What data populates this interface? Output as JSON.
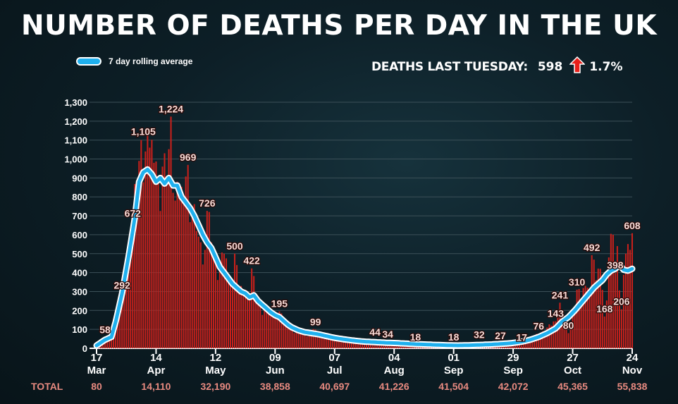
{
  "title": "NUMBER OF DEATHS PER DAY IN THE UK",
  "legend": {
    "label": "7 day rolling average",
    "color": "#1fb0ee"
  },
  "stat": {
    "label": "DEATHS LAST TUESDAY:",
    "value": "598",
    "change": "1.7%",
    "arrow_color": "#e8201a"
  },
  "colors": {
    "bar": "#c8201b",
    "line": "#1fb0ee",
    "grid": "#3c5058",
    "axis_text": "#ffffff",
    "total_text": "#e88a80"
  },
  "chart_data": {
    "type": "bar",
    "title": "NUMBER OF DEATHS PER DAY IN THE UK",
    "xlabel": "",
    "ylabel": "",
    "ylim": [
      0,
      1300
    ],
    "y_ticks": [
      0,
      100,
      200,
      300,
      400,
      500,
      600,
      700,
      800,
      900,
      1000,
      1100,
      1200,
      1300
    ],
    "y_tick_labels": [
      "0",
      "100",
      "200",
      "300",
      "400",
      "500",
      "600",
      "700",
      "800",
      "900",
      "1,000",
      "1,100",
      "1,200",
      "1,300"
    ],
    "day_count": 253,
    "x_ticks": [
      {
        "day": 0,
        "day_label": "17",
        "month": "Mar"
      },
      {
        "day": 28,
        "day_label": "14",
        "month": "Apr"
      },
      {
        "day": 56,
        "day_label": "12",
        "month": "May"
      },
      {
        "day": 84,
        "day_label": "09",
        "month": "Jun"
      },
      {
        "day": 112,
        "day_label": "07",
        "month": "Jul"
      },
      {
        "day": 140,
        "day_label": "04",
        "month": "Aug"
      },
      {
        "day": 168,
        "day_label": "01",
        "month": "Sep"
      },
      {
        "day": 196,
        "day_label": "29",
        "month": "Sep"
      },
      {
        "day": 224,
        "day_label": "27",
        "month": "Oct"
      },
      {
        "day": 252,
        "day_label": "24",
        "month": "Nov"
      }
    ],
    "annotations": [
      {
        "day": 4,
        "value": 58,
        "label": "58"
      },
      {
        "day": 12,
        "value": 292,
        "label": "292"
      },
      {
        "day": 17,
        "value": 672,
        "label": "672"
      },
      {
        "day": 22,
        "value": 1105,
        "label": "1,105"
      },
      {
        "day": 35,
        "value": 1224,
        "label": "1,224"
      },
      {
        "day": 43,
        "value": 969,
        "label": "969"
      },
      {
        "day": 52,
        "value": 726,
        "label": "726"
      },
      {
        "day": 65,
        "value": 500,
        "label": "500"
      },
      {
        "day": 73,
        "value": 422,
        "label": "422"
      },
      {
        "day": 86,
        "value": 195,
        "label": "195"
      },
      {
        "day": 103,
        "value": 99,
        "label": "99"
      },
      {
        "day": 131,
        "value": 44,
        "label": "44"
      },
      {
        "day": 137,
        "value": 34,
        "label": "34"
      },
      {
        "day": 150,
        "value": 18,
        "label": "18"
      },
      {
        "day": 168,
        "value": 18,
        "label": "18"
      },
      {
        "day": 180,
        "value": 32,
        "label": "32"
      },
      {
        "day": 190,
        "value": 27,
        "label": "27"
      },
      {
        "day": 200,
        "value": 17,
        "label": "17"
      },
      {
        "day": 208,
        "value": 76,
        "label": "76"
      },
      {
        "day": 216,
        "value": 143,
        "label": "143"
      },
      {
        "day": 222,
        "value": 80,
        "label": "80"
      },
      {
        "day": 218,
        "value": 241,
        "label": "241"
      },
      {
        "day": 226,
        "value": 310,
        "label": "310"
      },
      {
        "day": 233,
        "value": 492,
        "label": "492"
      },
      {
        "day": 239,
        "value": 168,
        "label": "168"
      },
      {
        "day": 244,
        "value": 398,
        "label": "398"
      },
      {
        "day": 247,
        "value": 206,
        "label": "206"
      },
      {
        "day": 252,
        "value": 608,
        "label": "608"
      }
    ],
    "bar_keyframes": [
      [
        0,
        10
      ],
      [
        3,
        30
      ],
      [
        6,
        70
      ],
      [
        9,
        180
      ],
      [
        12,
        290
      ],
      [
        15,
        520
      ],
      [
        17,
        670
      ],
      [
        19,
        880
      ],
      [
        21,
        1100
      ],
      [
        23,
        1040
      ],
      [
        25,
        1060
      ],
      [
        27,
        980
      ],
      [
        29,
        900
      ],
      [
        31,
        960
      ],
      [
        33,
        880
      ],
      [
        35,
        1224
      ],
      [
        37,
        780
      ],
      [
        39,
        820
      ],
      [
        41,
        760
      ],
      [
        43,
        969
      ],
      [
        45,
        740
      ],
      [
        47,
        620
      ],
      [
        49,
        560
      ],
      [
        51,
        520
      ],
      [
        52,
        726
      ],
      [
        54,
        560
      ],
      [
        56,
        460
      ],
      [
        58,
        420
      ],
      [
        60,
        500
      ],
      [
        62,
        380
      ],
      [
        64,
        330
      ],
      [
        65,
        500
      ],
      [
        67,
        300
      ],
      [
        69,
        310
      ],
      [
        71,
        280
      ],
      [
        73,
        422
      ],
      [
        75,
        260
      ],
      [
        77,
        230
      ],
      [
        79,
        200
      ],
      [
        81,
        190
      ],
      [
        83,
        180
      ],
      [
        86,
        195
      ],
      [
        88,
        140
      ],
      [
        90,
        120
      ],
      [
        92,
        110
      ],
      [
        95,
        90
      ],
      [
        98,
        80
      ],
      [
        100,
        75
      ],
      [
        103,
        99
      ],
      [
        106,
        70
      ],
      [
        110,
        55
      ],
      [
        114,
        45
      ],
      [
        118,
        42
      ],
      [
        122,
        38
      ],
      [
        126,
        34
      ],
      [
        131,
        44
      ],
      [
        134,
        30
      ],
      [
        137,
        34
      ],
      [
        141,
        22
      ],
      [
        145,
        18
      ],
      [
        150,
        18
      ],
      [
        155,
        12
      ],
      [
        160,
        10
      ],
      [
        165,
        10
      ],
      [
        168,
        18
      ],
      [
        172,
        12
      ],
      [
        176,
        15
      ],
      [
        180,
        32
      ],
      [
        184,
        16
      ],
      [
        188,
        20
      ],
      [
        190,
        27
      ],
      [
        194,
        18
      ],
      [
        198,
        22
      ],
      [
        200,
        17
      ],
      [
        203,
        40
      ],
      [
        206,
        60
      ],
      [
        208,
        76
      ],
      [
        210,
        90
      ],
      [
        212,
        110
      ],
      [
        214,
        120
      ],
      [
        216,
        143
      ],
      [
        218,
        241
      ],
      [
        220,
        130
      ],
      [
        222,
        80
      ],
      [
        224,
        190
      ],
      [
        226,
        310
      ],
      [
        228,
        260
      ],
      [
        230,
        330
      ],
      [
        232,
        280
      ],
      [
        233,
        492
      ],
      [
        235,
        360
      ],
      [
        237,
        420
      ],
      [
        239,
        168
      ],
      [
        241,
        480
      ],
      [
        243,
        600
      ],
      [
        244,
        398
      ],
      [
        245,
        540
      ],
      [
        247,
        206
      ],
      [
        249,
        500
      ],
      [
        251,
        520
      ],
      [
        252,
        608
      ]
    ],
    "line_keyframes": [
      [
        0,
        15
      ],
      [
        4,
        45
      ],
      [
        7,
        60
      ],
      [
        9,
        140
      ],
      [
        12,
        290
      ],
      [
        15,
        480
      ],
      [
        18,
        690
      ],
      [
        20,
        880
      ],
      [
        22,
        930
      ],
      [
        24,
        945
      ],
      [
        26,
        920
      ],
      [
        28,
        880
      ],
      [
        30,
        900
      ],
      [
        32,
        870
      ],
      [
        34,
        900
      ],
      [
        36,
        860
      ],
      [
        38,
        860
      ],
      [
        40,
        800
      ],
      [
        42,
        770
      ],
      [
        44,
        740
      ],
      [
        46,
        700
      ],
      [
        48,
        650
      ],
      [
        50,
        600
      ],
      [
        52,
        560
      ],
      [
        54,
        530
      ],
      [
        56,
        480
      ],
      [
        58,
        430
      ],
      [
        60,
        400
      ],
      [
        62,
        370
      ],
      [
        64,
        340
      ],
      [
        66,
        320
      ],
      [
        68,
        300
      ],
      [
        70,
        290
      ],
      [
        72,
        270
      ],
      [
        74,
        280
      ],
      [
        76,
        250
      ],
      [
        78,
        230
      ],
      [
        80,
        210
      ],
      [
        82,
        190
      ],
      [
        84,
        175
      ],
      [
        86,
        165
      ],
      [
        88,
        145
      ],
      [
        90,
        125
      ],
      [
        92,
        110
      ],
      [
        95,
        95
      ],
      [
        98,
        85
      ],
      [
        101,
        80
      ],
      [
        104,
        75
      ],
      [
        108,
        65
      ],
      [
        112,
        55
      ],
      [
        116,
        48
      ],
      [
        120,
        42
      ],
      [
        125,
        36
      ],
      [
        130,
        33
      ],
      [
        135,
        30
      ],
      [
        140,
        28
      ],
      [
        145,
        25
      ],
      [
        150,
        22
      ],
      [
        155,
        20
      ],
      [
        160,
        18
      ],
      [
        165,
        16
      ],
      [
        170,
        15
      ],
      [
        175,
        16
      ],
      [
        180,
        18
      ],
      [
        185,
        20
      ],
      [
        190,
        23
      ],
      [
        195,
        27
      ],
      [
        200,
        35
      ],
      [
        204,
        45
      ],
      [
        208,
        60
      ],
      [
        212,
        80
      ],
      [
        216,
        105
      ],
      [
        219,
        140
      ],
      [
        222,
        165
      ],
      [
        225,
        200
      ],
      [
        228,
        240
      ],
      [
        231,
        280
      ],
      [
        234,
        320
      ],
      [
        236,
        340
      ],
      [
        238,
        360
      ],
      [
        240,
        390
      ],
      [
        242,
        410
      ],
      [
        244,
        420
      ],
      [
        246,
        440
      ],
      [
        248,
        415
      ],
      [
        250,
        410
      ],
      [
        252,
        420
      ]
    ],
    "totals": [
      {
        "day": 0,
        "value": "80"
      },
      {
        "day": 28,
        "value": "14,110"
      },
      {
        "day": 56,
        "value": "32,190"
      },
      {
        "day": 84,
        "value": "38,858"
      },
      {
        "day": 112,
        "value": "40,697"
      },
      {
        "day": 140,
        "value": "41,226"
      },
      {
        "day": 168,
        "value": "41,504"
      },
      {
        "day": 196,
        "value": "42,072"
      },
      {
        "day": 224,
        "value": "45,365"
      },
      {
        "day": 252,
        "value": "55,838"
      }
    ]
  },
  "totals_label": "TOTAL"
}
